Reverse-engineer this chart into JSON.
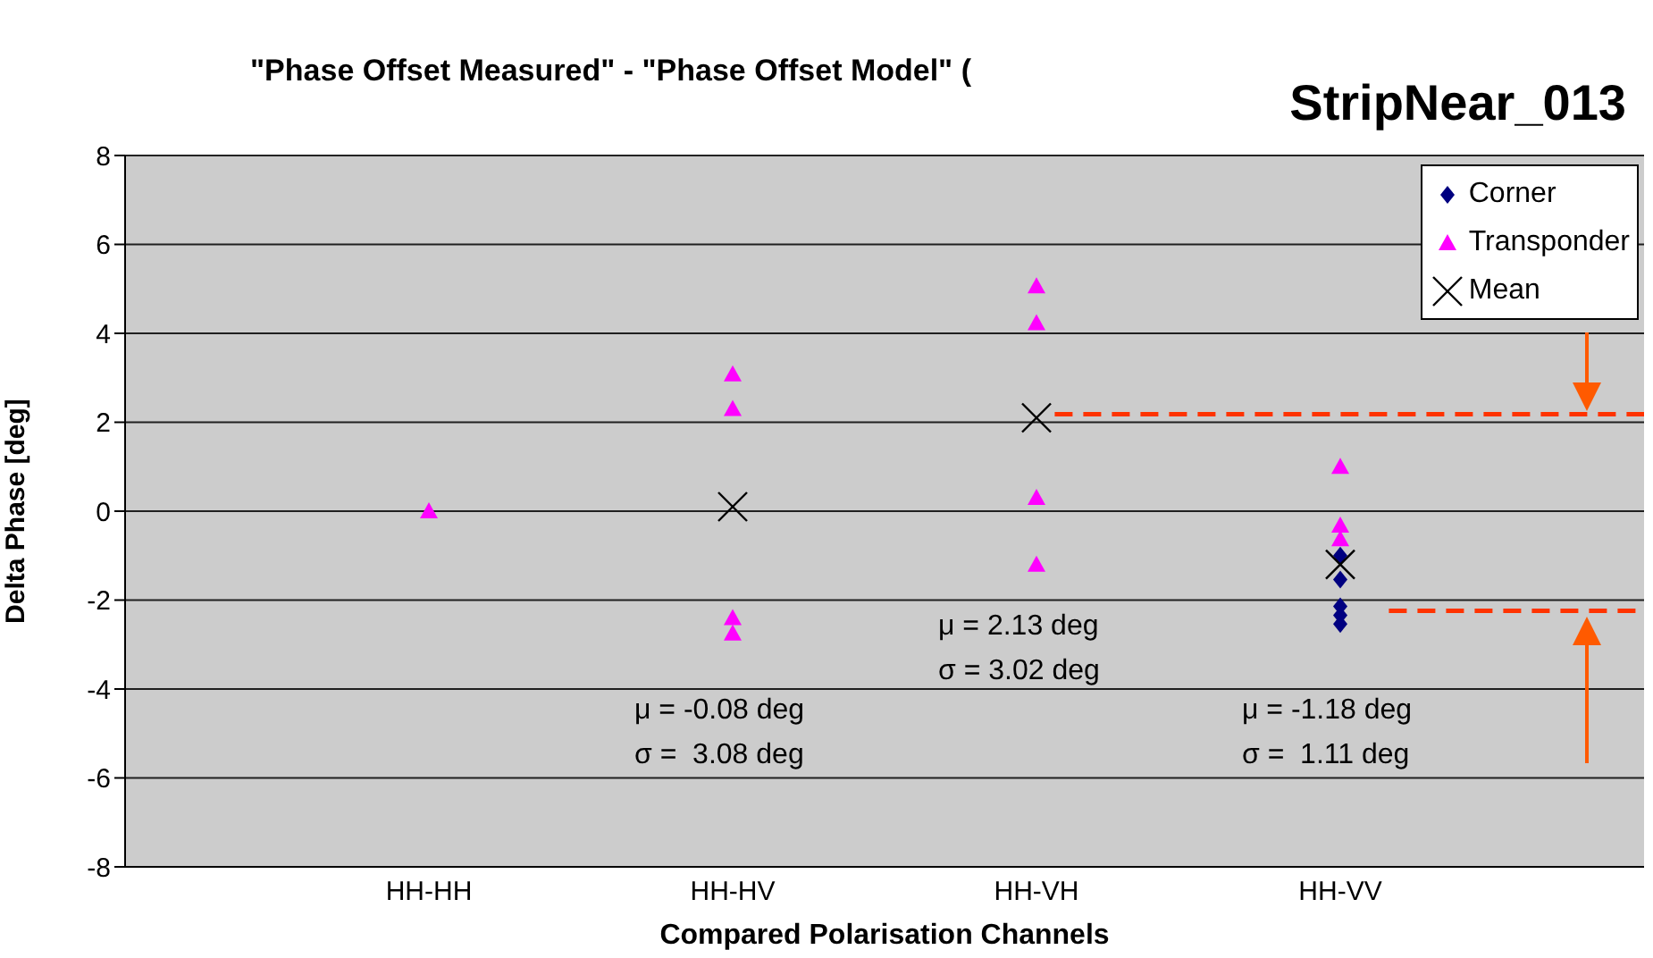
{
  "chart_data": {
    "type": "scatter",
    "title": "\"Phase Offset Measured\" - \"Phase Offset Model\" (",
    "subtitle": "StripNear_013",
    "xlabel": "Compared Polarisation Channels",
    "ylabel": "Delta Phase [deg]",
    "categories": [
      null,
      "HH-HH",
      "HH-HV",
      "HH-VH",
      "HH-VV",
      null
    ],
    "series": [
      {
        "name": "Corner",
        "color": "#000080",
        "marker": "diamond",
        "x": [
          "HH-VV",
          "HH-VV",
          "HH-VV",
          "HH-VV",
          "HH-VV"
        ],
        "values": [
          -1.0,
          -1.54,
          -2.14,
          -2.34,
          -2.54
        ]
      },
      {
        "name": "Transponder",
        "color": "#ff00ff",
        "marker": "triangle",
        "x": [
          "HH-HH",
          "HH-HV",
          "HH-HV",
          "HH-HV",
          "HH-HV",
          "HH-VH",
          "HH-VH",
          "HH-VH",
          "HH-VH",
          "HH-VV",
          "HH-VV",
          "HH-VV"
        ],
        "values": [
          0,
          3.08,
          2.3,
          -2.4,
          -2.75,
          5.06,
          4.23,
          0.3,
          -1.2,
          1.0,
          -0.32,
          -0.63
        ]
      },
      {
        "name": "Mean",
        "color": "#000000",
        "marker": "cross",
        "x": [
          "HH-HV",
          "HH-VH",
          "HH-VV"
        ],
        "values": [
          0.1,
          2.1,
          -1.2
        ]
      }
    ],
    "ylim": [
      -8,
      8
    ],
    "yticks": [
      -8,
      -6,
      -4,
      -2,
      0,
      2,
      4,
      6,
      8
    ],
    "grid": "y",
    "legend": "top right",
    "ref_lines": [
      {
        "axis": "y",
        "value": 2.18,
        "color": "#ff3300",
        "line_style": "dashed"
      },
      {
        "axis": "y",
        "value": -2.24,
        "color": "#ff3300",
        "line_style": "dashed"
      }
    ],
    "annotations": [
      "μ = -0.08 deg",
      "σ =  3.08 deg",
      "μ = 2.13 deg",
      "σ = 3.02 deg",
      "μ = -1.18 deg",
      "σ =  1.11 deg"
    ]
  }
}
